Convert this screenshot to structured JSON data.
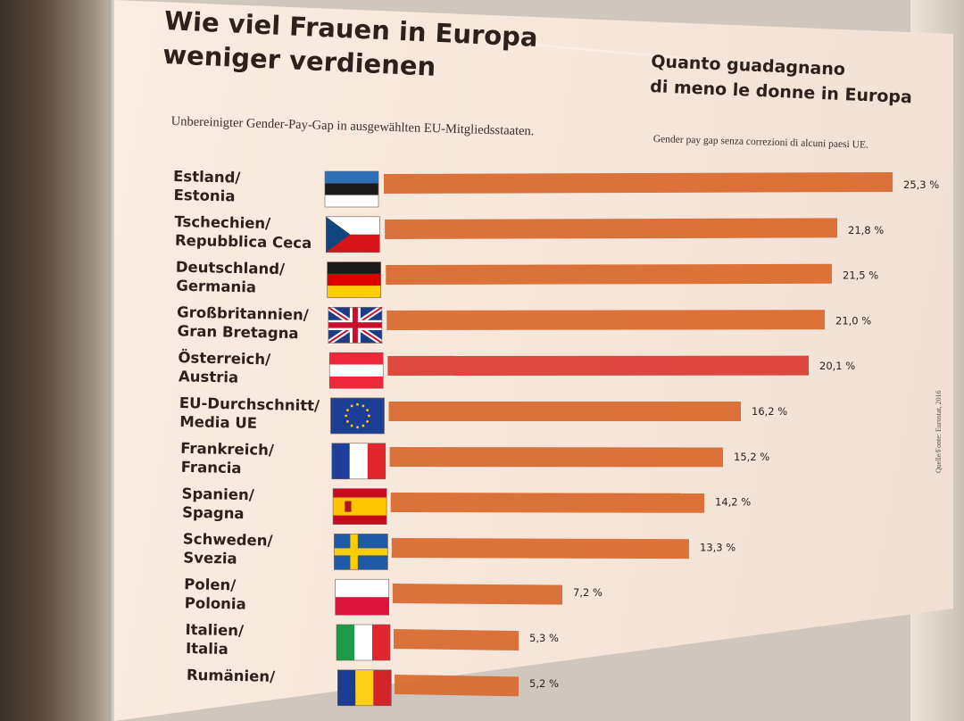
{
  "poster": {
    "title_de": "Wie viel Frauen in Europa\nweniger verdienen",
    "title_it": "Quanto guadagnano\ndi meno le donne in Europa",
    "subtitle_de": "Unbereinigter Gender-Pay-Gap in ausgewählten EU-Mitgliedsstaaten.",
    "subtitle_it": "Gender pay gap senza correzioni di alcuni paesi UE.",
    "source": "Quelle/Fonte: Eurostat, 2016"
  },
  "chart_data": {
    "type": "bar",
    "orientation": "horizontal",
    "title": "Wie viel Frauen in Europa weniger verdienen",
    "unit": "%",
    "xlim": [
      0,
      25.3
    ],
    "categories": [
      {
        "line1": "Estland/",
        "line2": "Estonia",
        "flag": "flag-estonia"
      },
      {
        "line1": "Tschechien/",
        "line2": "Repubblica Ceca",
        "flag": "flag-czech-republic"
      },
      {
        "line1": "Deutschland/",
        "line2": "Germania",
        "flag": "flag-germany"
      },
      {
        "line1": "Großbritannien/",
        "line2": "Gran Bretagna",
        "flag": "flag-united-kingdom"
      },
      {
        "line1": "Österreich/",
        "line2": "Austria",
        "flag": "flag-austria"
      },
      {
        "line1": "EU-Durchschnitt/",
        "line2": "Media UE",
        "flag": "flag-european-union"
      },
      {
        "line1": "Frankreich/",
        "line2": "Francia",
        "flag": "flag-france"
      },
      {
        "line1": "Spanien/",
        "line2": "Spagna",
        "flag": "flag-spain"
      },
      {
        "line1": "Schweden/",
        "line2": "Svezia",
        "flag": "flag-sweden"
      },
      {
        "line1": "Polen/",
        "line2": "Polonia",
        "flag": "flag-poland"
      },
      {
        "line1": "Italien/",
        "line2": "Italia",
        "flag": "flag-italy"
      },
      {
        "line1": "Rumänien/",
        "line2": "",
        "flag": "flag-romania"
      }
    ],
    "values": [
      25.3,
      21.8,
      21.5,
      21.0,
      20.1,
      16.2,
      15.2,
      14.2,
      13.3,
      7.2,
      5.3,
      5.2
    ],
    "value_labels": [
      "25,3 %",
      "21,8 %",
      "21,5 %",
      "21,0 %",
      "20,1 %",
      "16,2 %",
      "15,2 %",
      "14,2 %",
      "13,3 %",
      "7,2 %",
      "5,3 %",
      "5,2 %"
    ],
    "colors": {
      "bar": "#d9682e",
      "highlight": "#d93a32",
      "text": "#2c211c"
    },
    "highlight_index": 4
  }
}
